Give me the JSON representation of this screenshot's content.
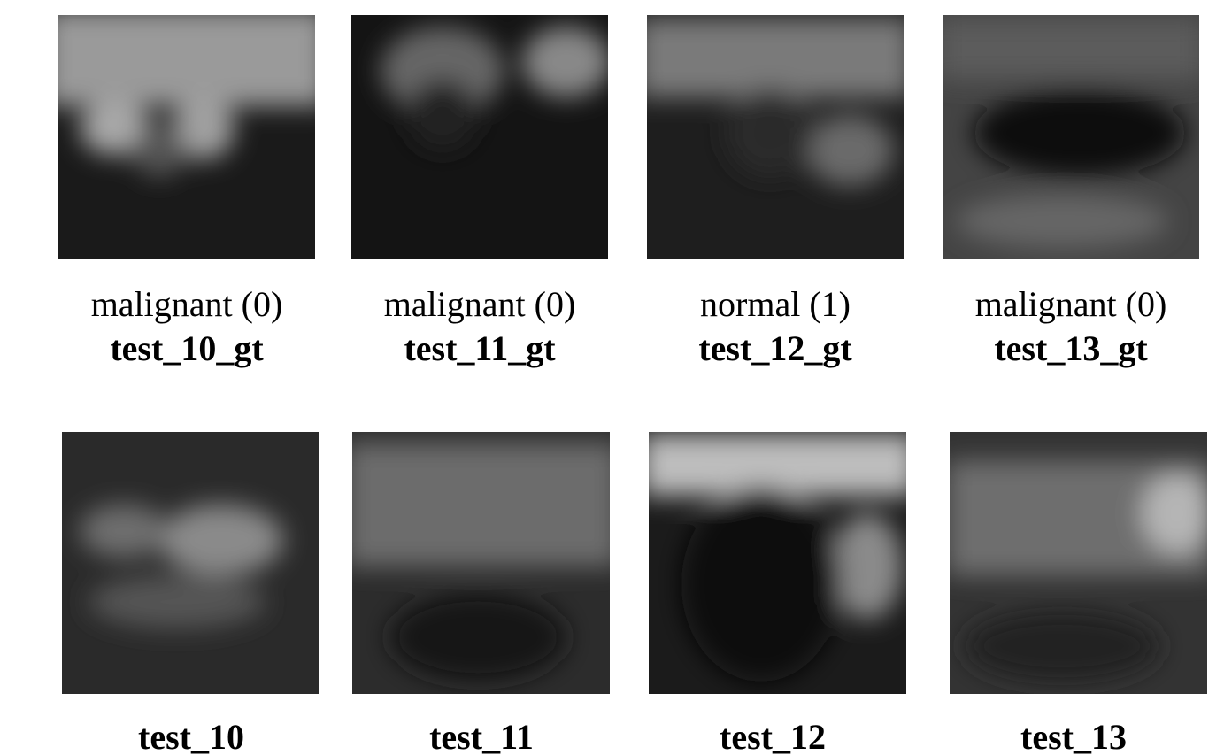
{
  "rows": [
    {
      "items": [
        {
          "label": "malignant (0)",
          "title": "test_10_gt"
        },
        {
          "label": "malignant (0)",
          "title": "test_11_gt"
        },
        {
          "label": "normal (1)",
          "title": "test_12_gt"
        },
        {
          "label": "malignant (0)",
          "title": "test_13_gt"
        }
      ]
    },
    {
      "items": [
        {
          "title": "test_10"
        },
        {
          "title": "test_11"
        },
        {
          "title": "test_12"
        },
        {
          "title": "test_13"
        }
      ]
    }
  ]
}
